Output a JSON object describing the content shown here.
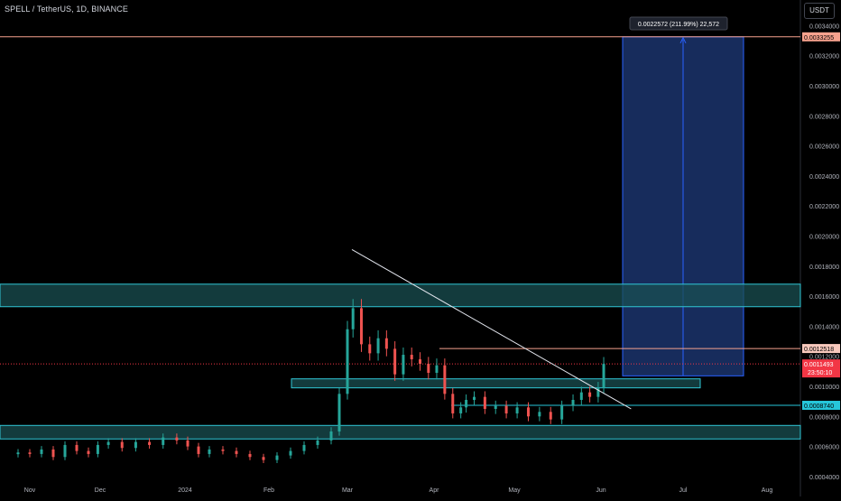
{
  "header": {
    "symbol_title": "SPELL / TetherUS, 1D, BINANCE",
    "currency_button": "USDT"
  },
  "colors": {
    "background": "#000000",
    "up_candle": "#26a69a",
    "down_candle": "#ef5350",
    "zone_fill": "#1a4f52",
    "zone_border": "#30c7d6",
    "target_box_fill": "#172c5c",
    "target_box_border": "#2962ff",
    "target_line": "#f7a28e",
    "trendline": "#e0e3eb",
    "current_price_tag": "#f23645",
    "support_tag": "#26c6da"
  },
  "chart_data": {
    "type": "candlestick",
    "title": "SPELL / TetherUS, 1D, BINANCE",
    "ylim": [
      0.00036,
      0.000352
    ],
    "y_ticks": [
      "0.0034000",
      "0.0032000",
      "0.0030000",
      "0.0028000",
      "0.0026000",
      "0.0024000",
      "0.0022000",
      "0.0020000",
      "0.0018000",
      "0.0016000",
      "0.0014000",
      "0.0012000",
      "0.0010000",
      "0.0008000",
      "0.0006000",
      "0.0004000"
    ],
    "y_tick_values": [
      0.0034,
      0.0032,
      0.003,
      0.0028,
      0.0026,
      0.0024,
      0.0022,
      0.002,
      0.0018,
      0.0016,
      0.0014,
      0.0012,
      0.001,
      0.0008,
      0.0006,
      0.0004
    ],
    "x_ticks": [
      "Nov",
      "Dec",
      "2024",
      "Feb",
      "Mar",
      "Apr",
      "May",
      "Jun",
      "Jul",
      "Aug"
    ],
    "x_tick_dates": [
      "2023-11-01",
      "2023-12-01",
      "2024-01-01",
      "2024-02-01",
      "2024-03-01",
      "2024-04-01",
      "2024-05-01",
      "2024-06-01",
      "2024-07-01",
      "2024-08-01"
    ],
    "price_labels": {
      "target": "0.0033255",
      "resistance": "0.0012518",
      "current": "0.0011493",
      "countdown": "23:50:10",
      "support": "0.0008740"
    },
    "measure_label": "0.0022572 (211.99%) 22,572",
    "zones": [
      {
        "from": 0.00153,
        "to": 0.00168
      },
      {
        "from": 0.00099,
        "to": 0.00105
      },
      {
        "from": 0.00065,
        "to": 0.00074
      }
    ],
    "trendline": {
      "from": {
        "date": "2024-03-01",
        "price": 0.00191
      },
      "to": {
        "date": "2024-06-12",
        "price": 0.00085
      }
    },
    "target_range": {
      "entry": 0.00107,
      "target": 0.0033255,
      "start": "2024-06-01",
      "end": "2024-07-20"
    },
    "series": [
      {
        "name": "SPELL/USDT",
        "dates": [
          "2023-10-27",
          "2023-11-01",
          "2023-11-06",
          "2023-11-11",
          "2023-11-16",
          "2023-11-21",
          "2023-11-26",
          "2023-11-30",
          "2023-12-04",
          "2023-12-09",
          "2023-12-14",
          "2023-12-19",
          "2023-12-24",
          "2023-12-29",
          "2024-01-02",
          "2024-01-06",
          "2024-01-10",
          "2024-01-15",
          "2024-01-20",
          "2024-01-25",
          "2024-01-30",
          "2024-02-04",
          "2024-02-09",
          "2024-02-14",
          "2024-02-19",
          "2024-02-24",
          "2024-02-27",
          "2024-03-01",
          "2024-03-03",
          "2024-03-06",
          "2024-03-09",
          "2024-03-12",
          "2024-03-15",
          "2024-03-18",
          "2024-03-21",
          "2024-03-24",
          "2024-03-27",
          "2024-03-30",
          "2024-04-02",
          "2024-04-05",
          "2024-04-08",
          "2024-04-11",
          "2024-04-13",
          "2024-04-16",
          "2024-04-20",
          "2024-04-24",
          "2024-04-28",
          "2024-05-02",
          "2024-05-06",
          "2024-05-10",
          "2024-05-14",
          "2024-05-18",
          "2024-05-22",
          "2024-05-25",
          "2024-05-28",
          "2024-05-31",
          "2024-06-02"
        ],
        "close": [
          0.00056,
          0.00055,
          0.00058,
          0.00053,
          0.00061,
          0.00057,
          0.00055,
          0.00061,
          0.00063,
          0.00059,
          0.00063,
          0.00061,
          0.00066,
          0.00064,
          0.0006,
          0.00055,
          0.00058,
          0.00057,
          0.00055,
          0.00053,
          0.00051,
          0.00054,
          0.00057,
          0.00061,
          0.00064,
          0.0007,
          0.00095,
          0.00138,
          0.00152,
          0.00128,
          0.00122,
          0.00132,
          0.00125,
          0.00108,
          0.00121,
          0.00118,
          0.00115,
          0.00109,
          0.00114,
          0.00095,
          0.00082,
          0.00086,
          0.00091,
          0.00093,
          0.00085,
          0.00087,
          0.00082,
          0.00086,
          0.0008,
          0.00083,
          0.00078,
          0.00087,
          0.00091,
          0.00096,
          0.00093,
          0.00099,
          0.0011493
        ]
      }
    ]
  }
}
